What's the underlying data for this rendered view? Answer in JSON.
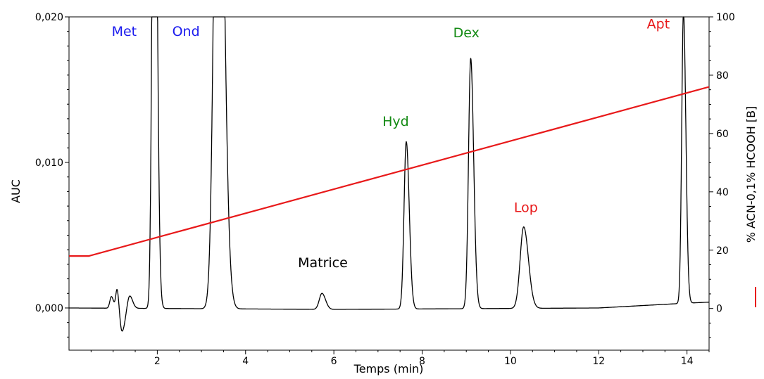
{
  "chart_data": {
    "type": "line",
    "xlabel": "Temps (min)",
    "ylabel": "AUC",
    "y2label": "% ACN-0,1% HCOOH [B]",
    "xlim": [
      0,
      14.5
    ],
    "ylim": [
      -0.0029,
      0.02
    ],
    "y2lim": [
      -14.3,
      100
    ],
    "x_ticks": [
      2,
      4,
      6,
      8,
      10,
      12,
      14
    ],
    "x_tick_labels": [
      "2",
      "4",
      "6",
      "8",
      "10",
      "12",
      "14"
    ],
    "y_ticks": [
      0.0,
      0.01,
      0.02
    ],
    "y_tick_labels": [
      "0,000",
      "0,010",
      "0,020"
    ],
    "y2_ticks": [
      0,
      20,
      40,
      60,
      80,
      100
    ],
    "y2_tick_labels": [
      "0",
      "20",
      "40",
      "60",
      "80",
      "100"
    ],
    "series": [
      {
        "color": "#000000",
        "axis": "left",
        "baseline": 0.0,
        "peaks": [
          {
            "t": 0.96,
            "h": 0.0008,
            "w": 0.035
          },
          {
            "t": 1.09,
            "h": 0.0014,
            "w": 0.03
          },
          {
            "t": 1.2,
            "h": -0.0016,
            "w": 0.05
          },
          {
            "t": 1.37,
            "h": 0.0009,
            "w": 0.05
          },
          {
            "t": 1.93,
            "h": 0.045,
            "w": 0.045
          },
          {
            "t": 3.38,
            "h": 0.045,
            "w": 0.09
          },
          {
            "t": 5.73,
            "h": 0.0011,
            "w": 0.06
          },
          {
            "t": 7.64,
            "h": 0.0115,
            "w": 0.05
          },
          {
            "t": 9.1,
            "h": 0.0172,
            "w": 0.05
          },
          {
            "t": 10.3,
            "h": 0.0056,
            "w": 0.08
          },
          {
            "t": 13.92,
            "h": 0.02,
            "w": 0.04
          }
        ],
        "drift": [
          [
            0,
            0.0
          ],
          [
            6.0,
            -0.0001
          ],
          [
            12.0,
            0.0
          ],
          [
            13.8,
            0.0003
          ],
          [
            14.5,
            0.0004
          ]
        ]
      },
      {
        "name": "% ACN-0,1% HCOOH [B]",
        "color": "#e8191a",
        "axis": "right",
        "x": [
          0.0,
          0.45,
          14.5
        ],
        "y": [
          18.0,
          18.0,
          76.0
        ]
      }
    ],
    "annotations": [
      {
        "text": "Met",
        "x": 1.25,
        "y": 0.0187,
        "color": "#1a1aee"
      },
      {
        "text": "Ond",
        "x": 2.65,
        "y": 0.0187,
        "color": "#1a1aee"
      },
      {
        "text": "Matrice",
        "x": 5.75,
        "y": 0.0028,
        "color": "#000000"
      },
      {
        "text": "Hyd",
        "x": 7.4,
        "y": 0.0125,
        "color": "#138a13"
      },
      {
        "text": "Dex",
        "x": 9.0,
        "y": 0.0186,
        "color": "#138a13"
      },
      {
        "text": "Lop",
        "x": 10.35,
        "y": 0.0066,
        "color": "#e8191a"
      },
      {
        "text": "Apt",
        "x": 13.35,
        "y": 0.0192,
        "color": "#e8191a"
      }
    ]
  }
}
